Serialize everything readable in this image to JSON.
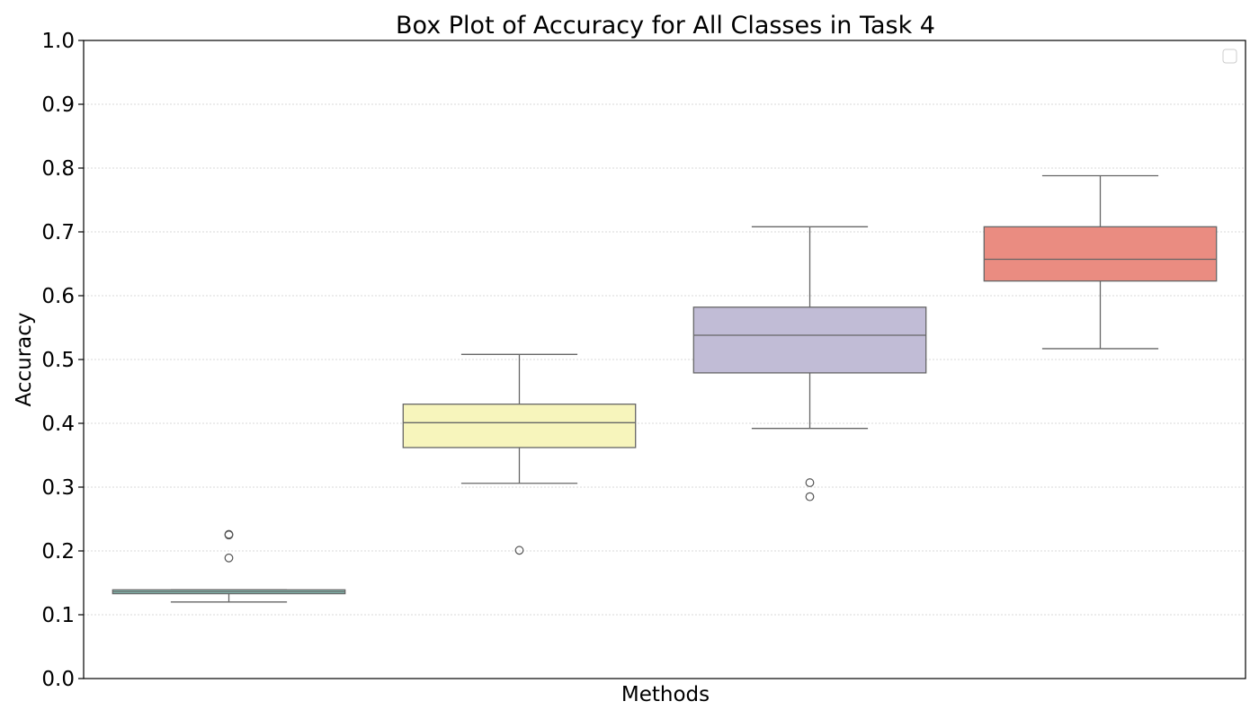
{
  "chart_data": {
    "type": "box",
    "title": "Box Plot of Accuracy for All Classes in Task 4",
    "xlabel": "Methods",
    "ylabel": "Accuracy",
    "ylim": [
      0,
      1
    ],
    "yticks": [
      "0.0",
      "0.1",
      "0.2",
      "0.3",
      "0.4",
      "0.5",
      "0.6",
      "0.7",
      "0.8",
      "0.9",
      "1.0"
    ],
    "grid": "horizontal dotted",
    "legend": "top-right (empty)",
    "boxes": [
      {
        "color": "#8dd3c7",
        "whisker_low": 0.12,
        "q1": 0.133,
        "median": 0.136,
        "q3": 0.139,
        "whisker_high": 0.139,
        "outliers": [
          0.189,
          0.225,
          0.226
        ]
      },
      {
        "color": "#f7f5bc",
        "whisker_low": 0.306,
        "q1": 0.362,
        "median": 0.401,
        "q3": 0.43,
        "whisker_high": 0.508,
        "outliers": [
          0.201
        ]
      },
      {
        "color": "#c1bcd6",
        "whisker_low": 0.392,
        "q1": 0.479,
        "median": 0.538,
        "q3": 0.582,
        "whisker_high": 0.708,
        "outliers": [
          0.285,
          0.307
        ]
      },
      {
        "color": "#ea8c81",
        "whisker_low": 0.517,
        "q1": 0.623,
        "median": 0.657,
        "q3": 0.708,
        "whisker_high": 0.788,
        "outliers": []
      }
    ]
  }
}
